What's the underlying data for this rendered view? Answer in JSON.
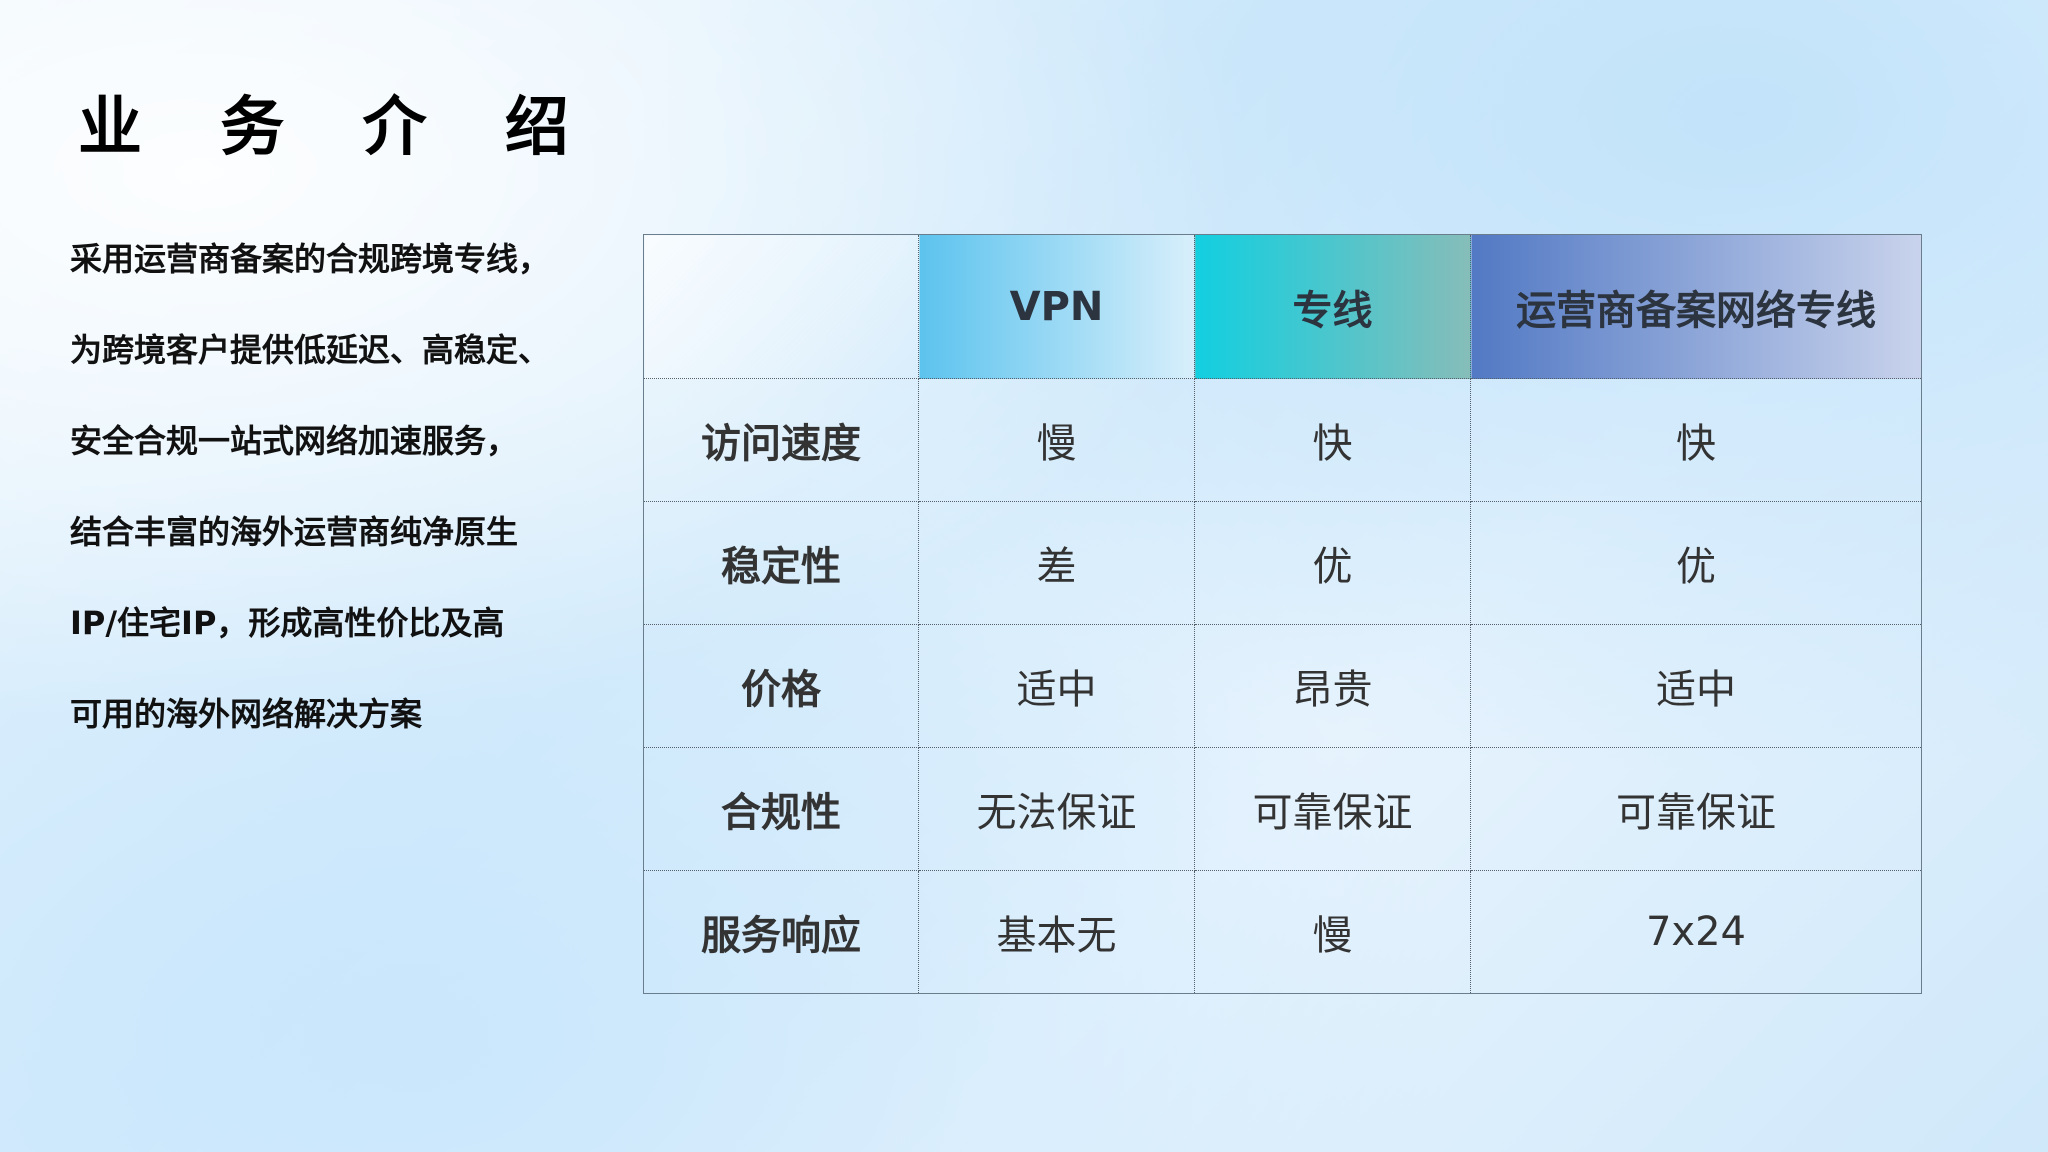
{
  "title": "业 务 介 绍",
  "paragraph": [
    "采用运营商备案的合规跨境专线，",
    "为跨境客户提供低延迟、高稳定、",
    "安全合规一站式网络加速服务，",
    "结合丰富的海外运营商纯净原生",
    "IP/住宅IP，形成高性价比及高",
    "可用的海外网络解决方案"
  ],
  "table": {
    "headers": [
      "",
      "VPN",
      "专线",
      "运营商备案网络专线"
    ],
    "header_colors": {
      "vpn": [
        "#5cc3ee",
        "#d8effb"
      ],
      "zx": [
        "#12cfe0",
        "#86bdb9"
      ],
      "yy": [
        "#5279c4",
        "#c9d3ec"
      ]
    },
    "rows": [
      {
        "label": "访问速度",
        "cells": [
          "慢",
          "快",
          "快"
        ]
      },
      {
        "label": "稳定性",
        "cells": [
          "差",
          "优",
          "优"
        ]
      },
      {
        "label": "价格",
        "cells": [
          "适中",
          "昂贵",
          "适中"
        ]
      },
      {
        "label": "合规性",
        "cells": [
          "无法保证",
          "可靠保证",
          "可靠保证"
        ]
      },
      {
        "label": "服务响应",
        "cells": [
          "基本无",
          "慢",
          "7x24"
        ]
      }
    ]
  }
}
